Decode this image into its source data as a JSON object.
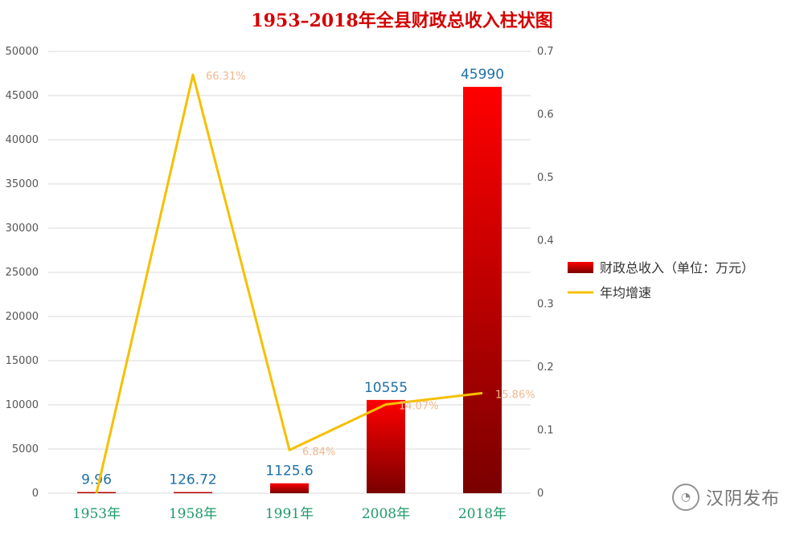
{
  "chart_data": {
    "type": "bar",
    "title": "1953–2018年全县财政总收入柱状图",
    "categories": [
      "1953年",
      "1958年",
      "1991年",
      "2008年",
      "2018年"
    ],
    "series": [
      {
        "name": "财政总收入（单位：万元）",
        "type": "bar",
        "axis": "left",
        "values": [
          9.96,
          126.72,
          1125.6,
          10555,
          45990
        ],
        "labels": [
          "9.96",
          "126.72",
          "1125.6",
          "10555",
          "45990"
        ],
        "color": "#d90000"
      },
      {
        "name": "年均增速",
        "type": "line",
        "axis": "right",
        "values": [
          0,
          0.6631,
          0.0684,
          0.1407,
          0.1586
        ],
        "labels": [
          "",
          "66.31%",
          "6.84%",
          "14.07%",
          "15.86%"
        ],
        "color": "#f5c000"
      }
    ],
    "left_axis": {
      "ylim": [
        0,
        50000
      ],
      "ticks": [
        "0",
        "5000",
        "10000",
        "15000",
        "20000",
        "25000",
        "30000",
        "35000",
        "40000",
        "45000",
        "50000"
      ]
    },
    "right_axis": {
      "ylim": [
        0,
        0.7
      ],
      "ticks": [
        "0",
        "0.1",
        "0.2",
        "0.3",
        "0.4",
        "0.5",
        "0.6",
        "0.7"
      ]
    },
    "grid": true,
    "legend_position": "right",
    "colors": {
      "title": "#d40000",
      "bar_top": "#ff0000",
      "bar_bottom": "#7a0000",
      "line": "#f5c000",
      "bar_label": "#1f6fa8",
      "line_label": "#f0b890",
      "category_label": "#1f9a6a",
      "tick_label": "#555555",
      "grid": "#d9d9d9"
    }
  },
  "watermark": {
    "text": "汉阴发布",
    "icon": "wechat-icon"
  }
}
